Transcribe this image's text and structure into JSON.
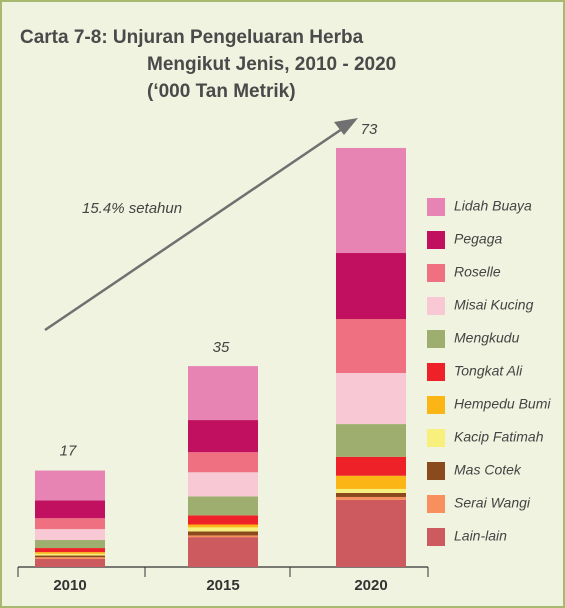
{
  "chart_data": {
    "type": "stacked_bar",
    "title": [
      "Carta 7-8: Unjuran Pengeluaran Herba",
      "Mengikut Jenis, 2010 - 2020",
      "(‘000 Tan Metrik)"
    ],
    "annotation": "15.4% setahun",
    "categories": [
      "2010",
      "2015",
      "2020"
    ],
    "totals": [
      17,
      35,
      73
    ],
    "series": [
      {
        "name": "Lidah Buaya",
        "color": "#e884b4",
        "values": [
          5.2,
          9.4,
          18.3
        ]
      },
      {
        "name": "Pegaga",
        "color": "#c0105f",
        "values": [
          3.1,
          5.6,
          11.5
        ]
      },
      {
        "name": "Roselle",
        "color": "#ef7080",
        "values": [
          1.9,
          3.5,
          9.4
        ]
      },
      {
        "name": "Misai Kucing",
        "color": "#f8c8d4",
        "values": [
          1.9,
          4.2,
          8.9
        ]
      },
      {
        "name": "Mengkudu",
        "color": "#9eae6e",
        "values": [
          1.4,
          3.3,
          5.7
        ]
      },
      {
        "name": "Tongkat Ali",
        "color": "#ee2028",
        "values": [
          0.7,
          1.6,
          3.3
        ]
      },
      {
        "name": "Hempedu Bumi",
        "color": "#fbb616",
        "values": [
          0.3,
          0.5,
          2.3
        ]
      },
      {
        "name": "Kacip Fatimah",
        "color": "#f8f07c",
        "values": [
          0.3,
          0.7,
          0.7
        ]
      },
      {
        "name": "Mas Cotek",
        "color": "#8a4a1e",
        "values": [
          0.3,
          0.7,
          0.7
        ]
      },
      {
        "name": "Serai Wangi",
        "color": "#f7905c",
        "values": [
          0.3,
          0.3,
          0.5
        ]
      },
      {
        "name": "Lain-lain",
        "color": "#cc5a5e",
        "values": [
          1.4,
          5.2,
          11.7
        ]
      }
    ]
  }
}
